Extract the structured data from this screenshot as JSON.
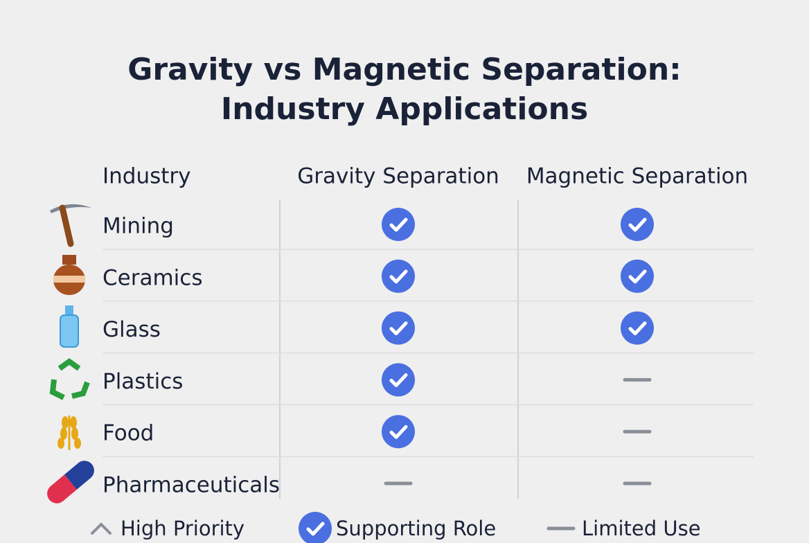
{
  "title_lines": [
    "Gravity vs Magnetic Separation:",
    "Industry Applications"
  ],
  "table": {
    "header": [
      "Industry",
      "Gravity Separation",
      "Magnetic Separation"
    ],
    "rows": [
      [
        "Mining",
        "Supporting Role",
        "Supporting Role"
      ],
      [
        "Ceramics",
        "Supporting Role",
        "Supporting Role"
      ],
      [
        "Glass",
        "Supporting Role",
        "Supporting Role"
      ],
      [
        "Plastics",
        "Supporting Role",
        "Limited Use"
      ],
      [
        "Food",
        "Supporting Role",
        "Limited Use"
      ],
      [
        "Pharmaceuticals",
        "Limited Use",
        "Limited Use"
      ]
    ]
  },
  "legend": [
    "High Priority",
    "Supporting Role",
    "Limited Use"
  ]
}
